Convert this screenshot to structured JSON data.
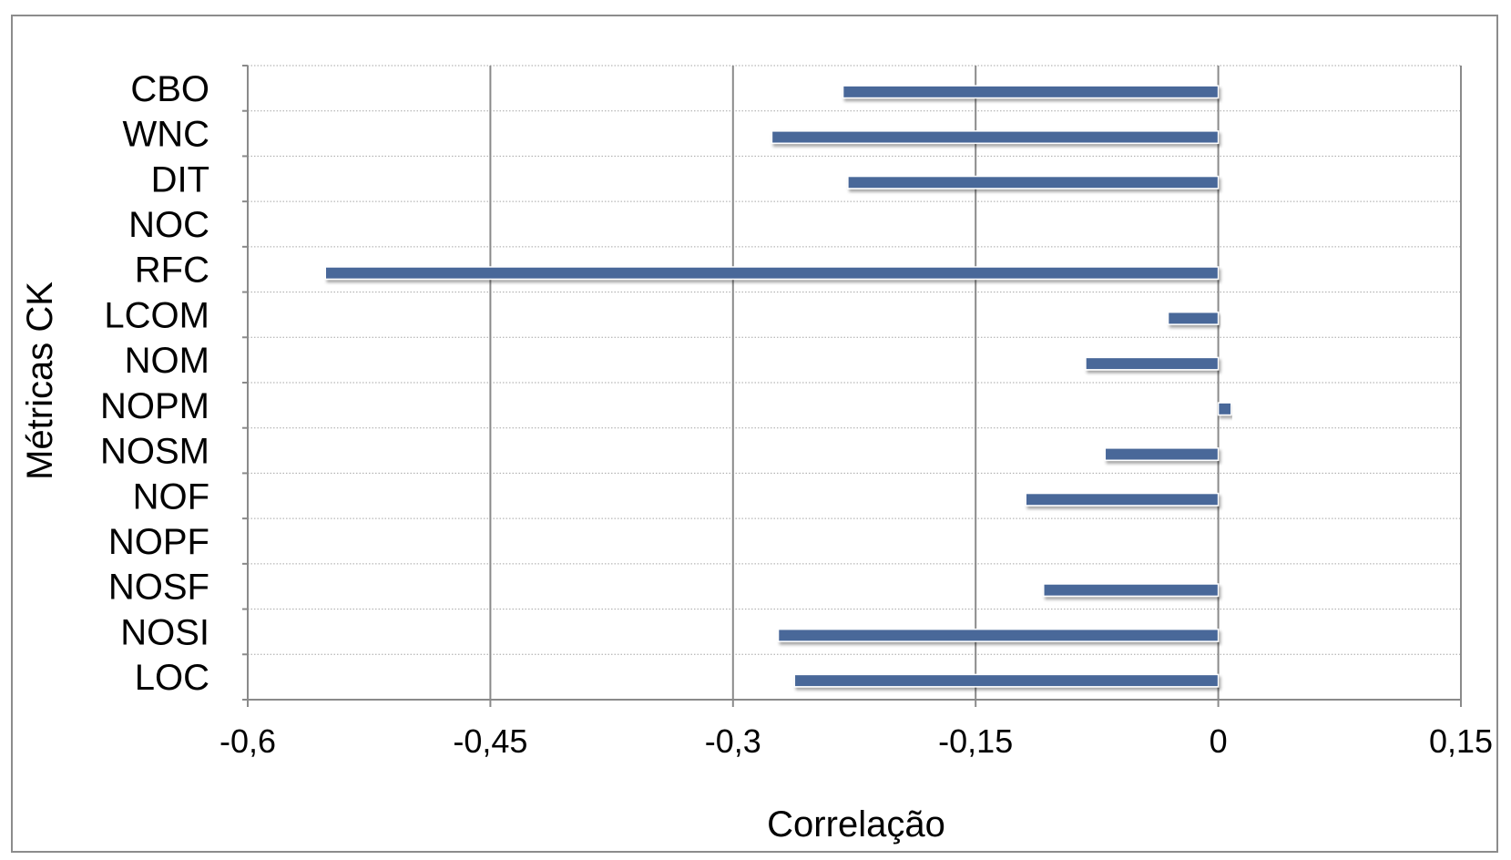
{
  "chart_data": {
    "type": "bar",
    "orientation": "horizontal",
    "title": "",
    "xlabel": "Correlação",
    "ylabel": "Métricas CK",
    "xlim": [
      -0.6,
      0.15
    ],
    "xticks": [
      -0.6,
      -0.45,
      -0.3,
      -0.15,
      0,
      0.15
    ],
    "xtick_labels": [
      "-0,6",
      "-0,45",
      "-0,3",
      "-0,15",
      "0",
      "0,15"
    ],
    "categories": [
      "CBO",
      "WNC",
      "DIT",
      "NOC",
      "RFC",
      "LCOM",
      "NOM",
      "NOPM",
      "NOSM",
      "NOF",
      "NOPF",
      "NOSF",
      "NOSI",
      "LOC"
    ],
    "values": [
      -0.232,
      -0.276,
      -0.229,
      0,
      -0.552,
      -0.031,
      -0.082,
      0.008,
      -0.07,
      -0.119,
      0,
      -0.108,
      -0.272,
      -0.262
    ],
    "bar_color": "#4a6899",
    "grid": true,
    "legend": "none"
  }
}
